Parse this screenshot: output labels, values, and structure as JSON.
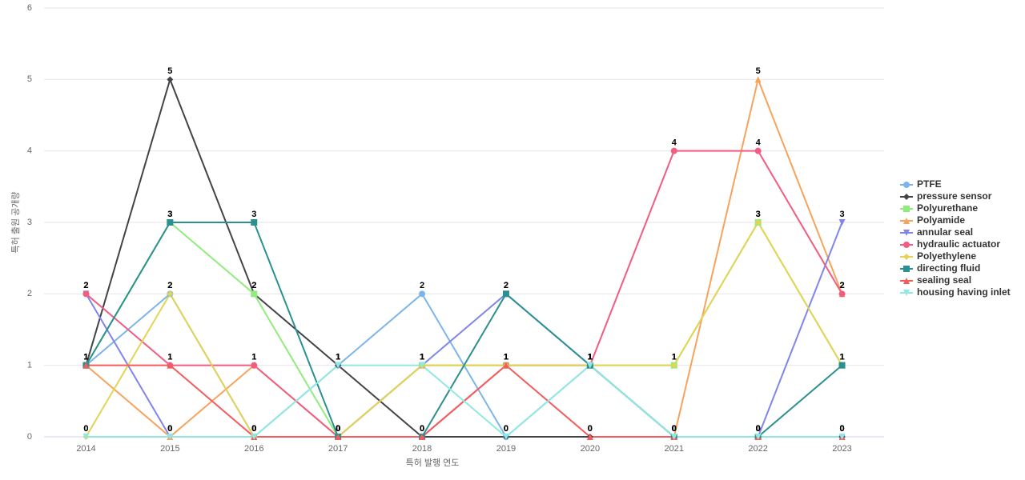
{
  "chart_data": {
    "type": "line",
    "x_label": "특허 발행 연도",
    "y_label": "특허 출원 공개량",
    "categories": [
      "2014",
      "2015",
      "2016",
      "2017",
      "2018",
      "2019",
      "2020",
      "2021",
      "2022",
      "2023"
    ],
    "ylim": [
      0,
      6
    ],
    "yticks": [
      0,
      1,
      2,
      3,
      4,
      5,
      6
    ],
    "grid": true,
    "legend": "right",
    "series": [
      {
        "name": "PTFE",
        "color": "#7cb5ec",
        "marker": "circle",
        "values": [
          1,
          2,
          0,
          1,
          2,
          0,
          1,
          0,
          0,
          0
        ]
      },
      {
        "name": "pressure sensor",
        "color": "#434348",
        "marker": "diamond",
        "values": [
          1,
          5,
          2,
          1,
          0,
          0,
          0,
          0,
          0,
          0
        ]
      },
      {
        "name": "Polyurethane",
        "color": "#90ed7d",
        "marker": "square",
        "values": [
          1,
          3,
          2,
          0,
          1,
          1,
          1,
          1,
          3,
          1
        ]
      },
      {
        "name": "Polyamide",
        "color": "#f7a35c",
        "marker": "triangle",
        "values": [
          1,
          0,
          1,
          0,
          1,
          1,
          1,
          0,
          5,
          2
        ]
      },
      {
        "name": "annular seal",
        "color": "#8085e9",
        "marker": "triangle-down",
        "values": [
          2,
          0,
          0,
          0,
          1,
          2,
          1,
          0,
          0,
          3
        ]
      },
      {
        "name": "hydraulic actuator",
        "color": "#f15c80",
        "marker": "circle",
        "values": [
          2,
          1,
          1,
          0,
          0,
          1,
          1,
          4,
          4,
          2
        ]
      },
      {
        "name": "Polyethylene",
        "color": "#e4d354",
        "marker": "diamond",
        "values": [
          0,
          2,
          0,
          0,
          1,
          1,
          1,
          1,
          3,
          1
        ]
      },
      {
        "name": "directing fluid",
        "color": "#2b908f",
        "marker": "square",
        "values": [
          1,
          3,
          3,
          0,
          0,
          2,
          1,
          0,
          0,
          1
        ]
      },
      {
        "name": "sealing seal",
        "color": "#f45b5b",
        "marker": "triangle",
        "values": [
          1,
          1,
          0,
          0,
          0,
          1,
          0,
          0,
          0,
          0
        ]
      },
      {
        "name": "housing having inlet",
        "color": "#91e8e1",
        "marker": "triangle-down",
        "values": [
          0,
          0,
          0,
          1,
          1,
          0,
          1,
          0,
          0,
          0
        ]
      }
    ]
  }
}
